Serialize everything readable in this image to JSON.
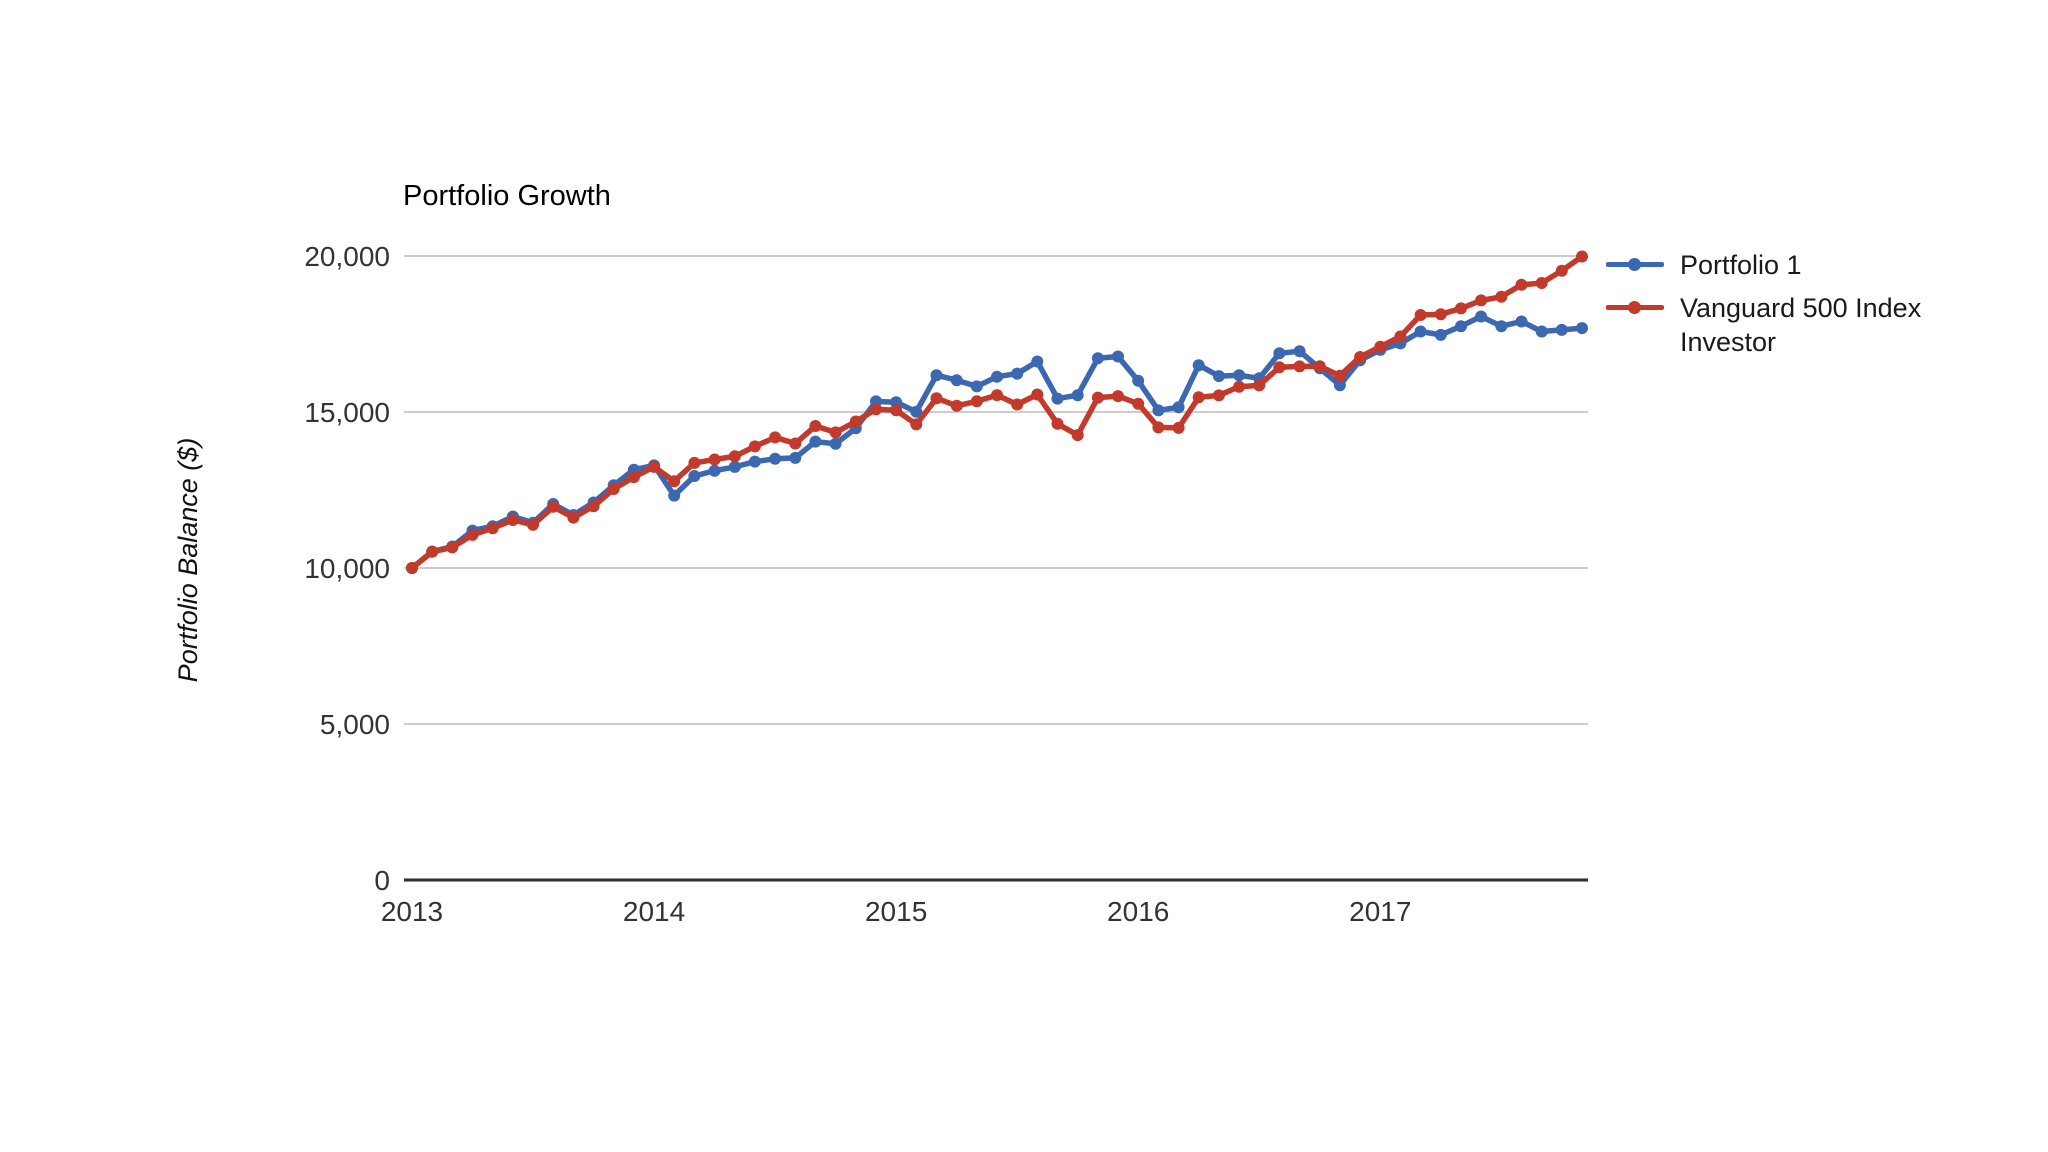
{
  "chart": {
    "title": "Portfolio Growth",
    "y_axis_title": "Portfolio Balance ($)",
    "colors": {
      "portfolio1": "#3c68b1",
      "vanguard500": "#c13a2b",
      "gridline": "#cccccc",
      "axis_line": "#2f2f2f",
      "tick_text": "#333333"
    }
  },
  "chart_data": {
    "type": "line",
    "title": "Portfolio Growth",
    "xlabel": "",
    "ylabel": "Portfolio Balance ($)",
    "x_unit": "months since Jan 2013 (0 = start value, monthly points through Oct 2017)",
    "xlim": [
      0,
      58
    ],
    "ylim": [
      0,
      20000
    ],
    "grid": true,
    "legend_position": "right",
    "xticks": [
      {
        "pos": 0,
        "label": "2013"
      },
      {
        "pos": 12,
        "label": "2014"
      },
      {
        "pos": 24,
        "label": "2015"
      },
      {
        "pos": 36,
        "label": "2016"
      },
      {
        "pos": 48,
        "label": "2017"
      }
    ],
    "yticks": [
      {
        "pos": 0,
        "label": "0"
      },
      {
        "pos": 5000,
        "label": "5,000"
      },
      {
        "pos": 10000,
        "label": "10,000"
      },
      {
        "pos": 15000,
        "label": "15,000"
      },
      {
        "pos": 20000,
        "label": "20,000"
      }
    ],
    "series": [
      {
        "name": "Portfolio 1",
        "color": "#3c68b1",
        "values": [
          10000,
          10530,
          10690,
          11200,
          11340,
          11650,
          11450,
          12050,
          11700,
          12100,
          12650,
          13150,
          13290,
          12320,
          12950,
          13120,
          13240,
          13410,
          13500,
          13530,
          14050,
          13980,
          14480,
          15340,
          15310,
          15010,
          16180,
          16020,
          15820,
          16130,
          16230,
          16620,
          15430,
          15540,
          16720,
          16780,
          16000,
          15050,
          15150,
          16500,
          16150,
          16180,
          16080,
          16880,
          16950,
          16400,
          15860,
          16660,
          16990,
          17200,
          17580,
          17470,
          17750,
          18060,
          17750,
          17900,
          17580,
          17630,
          17690
        ]
      },
      {
        "name": "Vanguard 500 Index Investor",
        "color": "#c13a2b",
        "values": [
          10000,
          10518,
          10661,
          11061,
          11275,
          11538,
          11384,
          11963,
          11616,
          11981,
          12532,
          12914,
          13241,
          12783,
          13367,
          13479,
          13579,
          13898,
          14186,
          13990,
          14550,
          14346,
          14696,
          15091,
          15054,
          14602,
          15442,
          15198,
          15343,
          15541,
          15240,
          15560,
          14621,
          14260,
          15463,
          15510,
          15265,
          14508,
          14489,
          15471,
          15532,
          15811,
          15852,
          16437,
          16460,
          16464,
          16164,
          16762,
          17094,
          17419,
          18110,
          18132,
          18319,
          18577,
          18692,
          19077,
          19136,
          19530,
          19985
        ]
      }
    ]
  },
  "legend": {
    "items": [
      {
        "label": "Portfolio 1"
      },
      {
        "label": "Vanguard 500 Index Investor"
      }
    ]
  }
}
